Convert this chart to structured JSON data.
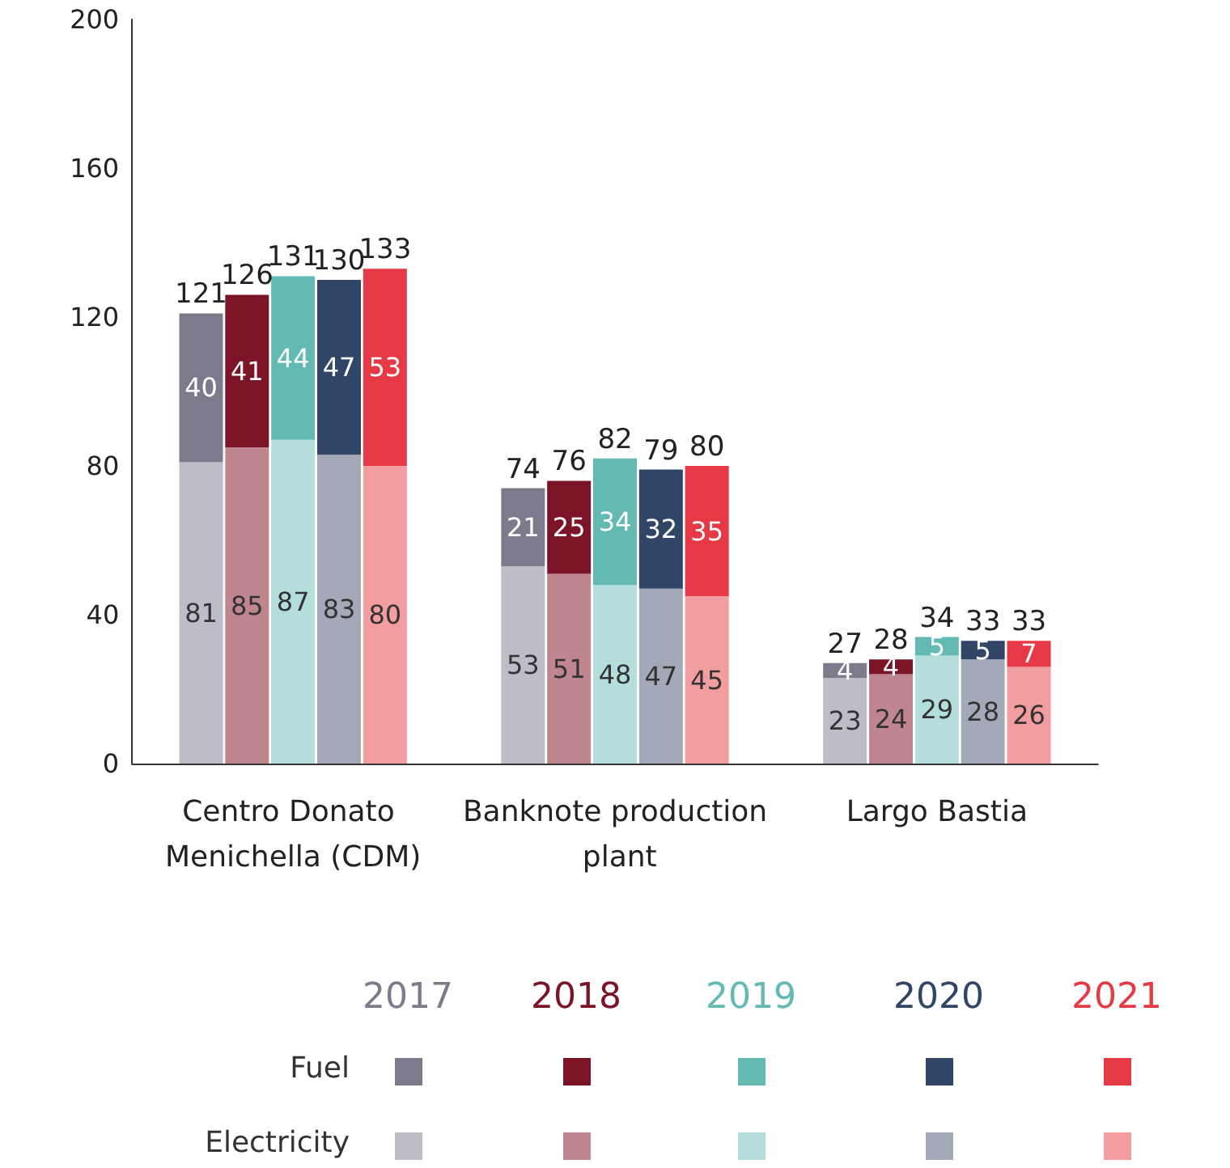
{
  "chart_data": {
    "type": "bar",
    "stacked": true,
    "categories": [
      null,
      null,
      null,
      "Centro Donato Menichella (CDM)",
      null,
      null,
      null,
      null,
      null,
      null,
      "Banknote production plant",
      null,
      null,
      null,
      null,
      null,
      null,
      "Largo Bastia",
      null,
      null,
      null
    ],
    "series": [
      {
        "name": "Electricity",
        "values": [
          null,
          81,
          85,
          87,
          83,
          80,
          null,
          null,
          53,
          51,
          48,
          47,
          45,
          null,
          null,
          23,
          24,
          29,
          28,
          26,
          null
        ],
        "colors": [
          null,
          "#bebcc6",
          "#bf8690",
          "#b3dedb",
          "#a3a9b7",
          "#f29da0",
          null,
          null,
          "#bebcc6",
          "#bf8690",
          "#b3dedb",
          "#a3a9b7",
          "#f29da0",
          null,
          null,
          "#bebcc6",
          "#bf8690",
          "#b3dedb",
          "#a3a9b7",
          "#f29da0",
          null
        ]
      },
      {
        "name": "Fuel",
        "values": [
          null,
          40,
          41,
          44,
          47,
          53,
          null,
          null,
          21,
          25,
          34,
          32,
          35,
          null,
          null,
          4,
          4,
          5,
          5,
          7,
          null
        ],
        "colors": [
          null,
          "#7e7a8c",
          "#7a1426",
          "#62bab3",
          "#314666",
          "#e63946",
          null,
          null,
          "#7e7a8c",
          "#7a1426",
          "#62bab3",
          "#314666",
          "#e63946",
          null,
          null,
          "#7e7a8c",
          "#7a1426",
          "#62bab3",
          "#314666",
          "#e63946",
          null
        ]
      }
    ],
    "totals": [
      null,
      "121",
      "126",
      "131",
      "130",
      "133",
      null,
      null,
      "74",
      "76",
      "82",
      "79",
      "80",
      null,
      null,
      "27",
      "28",
      "34",
      "33",
      "33",
      null
    ],
    "annotations": [
      "2017",
      "2018",
      "2019",
      "2020",
      "2021"
    ],
    "ylim": [
      0,
      200
    ],
    "yticks": [
      0,
      40,
      80,
      120,
      160,
      200
    ],
    "grid": false,
    "data_labels": true,
    "legend": "bottom"
  }
}
